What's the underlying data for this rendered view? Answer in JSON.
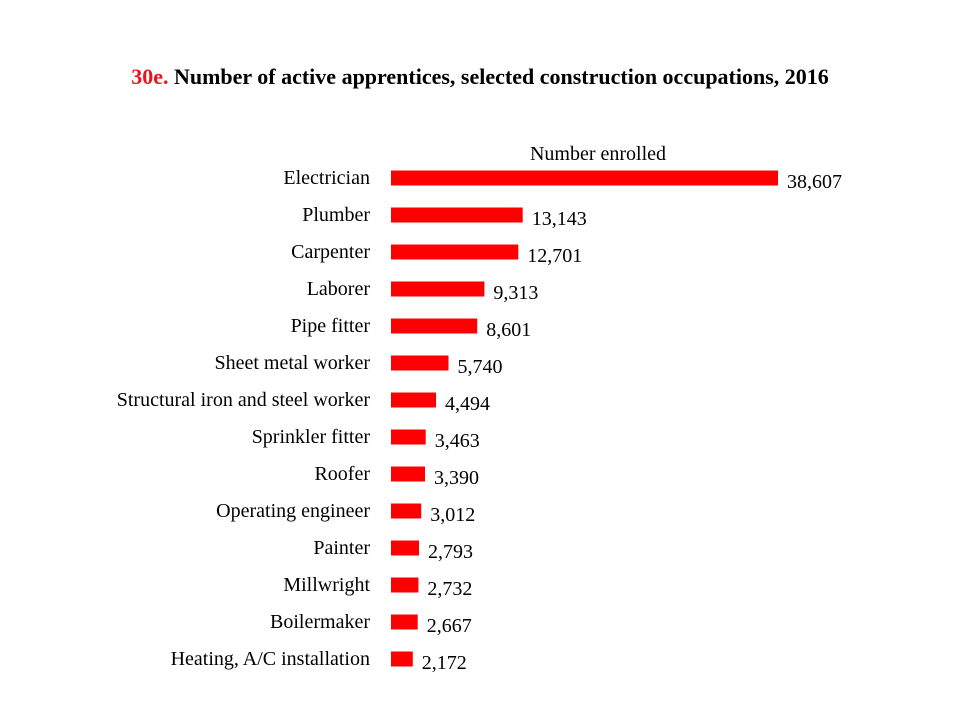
{
  "title_prefix": "30e.",
  "title_text": "Number of active apprentices, selected construction occupations, 2016",
  "chart_data": {
    "type": "bar",
    "orientation": "horizontal",
    "series_label": "Number enrolled",
    "categories": [
      "Electrician",
      "Plumber",
      "Carpenter",
      "Laborer",
      "Pipe fitter",
      "Sheet metal worker",
      "Structural iron and steel worker",
      "Sprinkler fitter",
      "Roofer",
      "Operating engineer",
      "Painter",
      "Millwright",
      "Boilermaker",
      "Heating, A/C installation"
    ],
    "values": [
      38607,
      13143,
      12701,
      9313,
      8601,
      5740,
      4494,
      3463,
      3390,
      3012,
      2793,
      2732,
      2667,
      2172
    ],
    "value_labels": [
      "38,607",
      "13,143",
      "12,701",
      "9,313",
      "8,601",
      "5,740",
      "4,494",
      "3,463",
      "3,390",
      "3,012",
      "2,793",
      "2,732",
      "2,667",
      "2,172"
    ],
    "bar_color": "#ff0000",
    "title_accent_color": "#e8141c",
    "grid": false,
    "legend": "none"
  }
}
